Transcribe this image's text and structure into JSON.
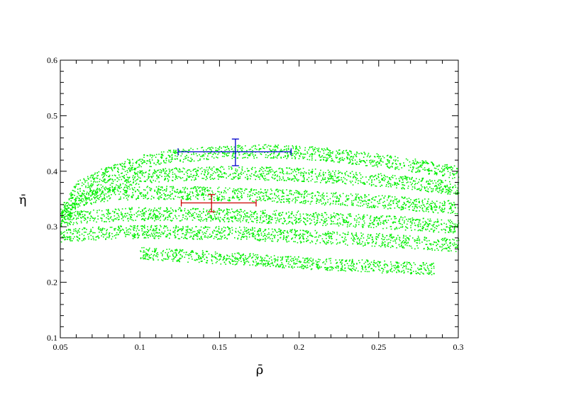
{
  "chart_data": {
    "type": "scatter",
    "title": "",
    "xlabel": "ρ̄",
    "ylabel": "η̄",
    "xlim": [
      0.05,
      0.3
    ],
    "ylim": [
      0.1,
      0.6
    ],
    "x_ticks": [
      0.05,
      0.1,
      0.15,
      0.2,
      0.25,
      0.3
    ],
    "x_tick_labels": [
      "0.05",
      "0.1",
      "0.15",
      "0.2",
      "0.25",
      "0.3"
    ],
    "y_ticks": [
      0.1,
      0.2,
      0.3,
      0.4,
      0.5,
      0.6
    ],
    "y_tick_labels": [
      "0.1",
      "0.2",
      "0.3",
      "0.4",
      "0.5",
      "0.6"
    ],
    "grid": false,
    "legend": "none",
    "colors": {
      "bands": "#00ee00",
      "blue_point": "#0000cc",
      "red_point": "#cc0000",
      "axes": "#000000"
    },
    "series": [
      {
        "kind": "green-scatter-bands",
        "bands": [
          {
            "x": [
              0.05,
              0.06,
              0.08,
              0.1,
              0.12,
              0.15,
              0.18,
              0.2,
              0.22,
              0.25,
              0.28,
              0.3
            ],
            "y": [
              0.325,
              0.37,
              0.4,
              0.418,
              0.428,
              0.435,
              0.437,
              0.435,
              0.43,
              0.42,
              0.408,
              0.398
            ],
            "half_width": 0.012
          },
          {
            "x": [
              0.05,
              0.06,
              0.08,
              0.1,
              0.12,
              0.15,
              0.2,
              0.25,
              0.3
            ],
            "y": [
              0.305,
              0.345,
              0.375,
              0.39,
              0.395,
              0.398,
              0.395,
              0.385,
              0.37
            ],
            "half_width": 0.012
          },
          {
            "x": [
              0.05,
              0.06,
              0.08,
              0.1,
              0.12,
              0.15,
              0.2,
              0.25,
              0.3
            ],
            "y": [
              0.33,
              0.348,
              0.36,
              0.362,
              0.362,
              0.36,
              0.355,
              0.346,
              0.335
            ],
            "half_width": 0.012
          },
          {
            "x": [
              0.05,
              0.06,
              0.08,
              0.1,
              0.15,
              0.2,
              0.25,
              0.3
            ],
            "y": [
              0.312,
              0.318,
              0.322,
              0.324,
              0.322,
              0.317,
              0.31,
              0.3
            ],
            "half_width": 0.012
          },
          {
            "x": [
              0.05,
              0.08,
              0.1,
              0.15,
              0.2,
              0.25,
              0.3
            ],
            "y": [
              0.285,
              0.29,
              0.292,
              0.29,
              0.284,
              0.277,
              0.268
            ],
            "half_width": 0.012
          },
          {
            "x": [
              0.1,
              0.15,
              0.2,
              0.25,
              0.285
            ],
            "y": [
              0.253,
              0.245,
              0.236,
              0.229,
              0.225
            ],
            "half_width": 0.011
          }
        ]
      },
      {
        "kind": "errorbar",
        "color": "blue",
        "x": 0.16,
        "y": 0.435,
        "xerr": [
          0.124,
          0.195
        ],
        "yerr": [
          0.41,
          0.458
        ]
      },
      {
        "kind": "errorbar",
        "color": "red",
        "x": 0.145,
        "y": 0.343,
        "xerr": [
          0.126,
          0.173
        ],
        "yerr": [
          0.327,
          0.358
        ]
      }
    ]
  }
}
